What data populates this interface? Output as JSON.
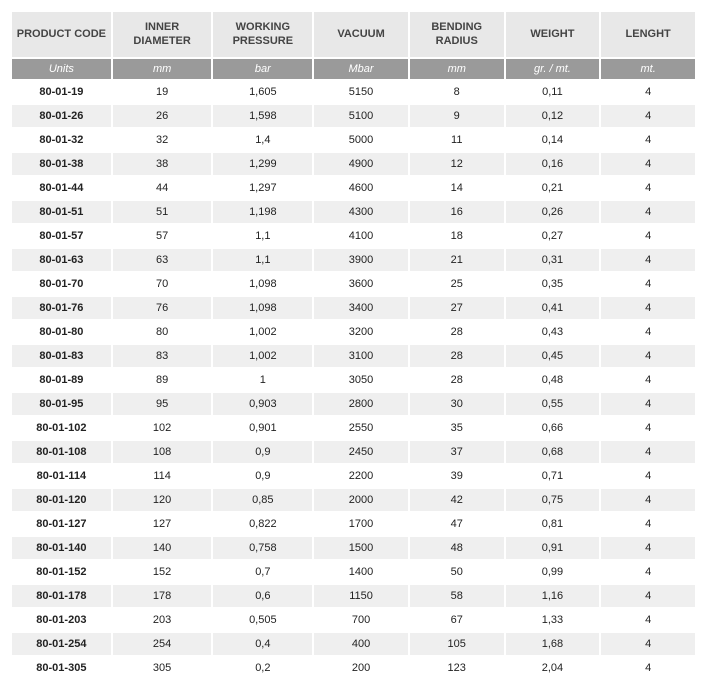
{
  "table": {
    "type": "table",
    "columns": [
      {
        "header": "PRODUCT CODE",
        "unit": "Units",
        "width": 100
      },
      {
        "header": "INNER DIAMETER",
        "unit": "mm",
        "width": 100
      },
      {
        "header": "WORKING PRESSURE",
        "unit": "bar",
        "width": 100
      },
      {
        "header": "VACUUM",
        "unit": "Mbar",
        "width": 95
      },
      {
        "header": "BENDING RADIUS",
        "unit": "mm",
        "width": 95
      },
      {
        "header": "WEIGHT",
        "unit": "gr. / mt.",
        "width": 95
      },
      {
        "header": "LENGHT",
        "unit": "mt.",
        "width": 95
      }
    ],
    "rows": [
      [
        "80-01-19",
        "19",
        "1,605",
        "5150",
        "8",
        "0,11",
        "4"
      ],
      [
        "80-01-26",
        "26",
        "1,598",
        "5100",
        "9",
        "0,12",
        "4"
      ],
      [
        "80-01-32",
        "32",
        "1,4",
        "5000",
        "11",
        "0,14",
        "4"
      ],
      [
        "80-01-38",
        "38",
        "1,299",
        "4900",
        "12",
        "0,16",
        "4"
      ],
      [
        "80-01-44",
        "44",
        "1,297",
        "4600",
        "14",
        "0,21",
        "4"
      ],
      [
        "80-01-51",
        "51",
        "1,198",
        "4300",
        "16",
        "0,26",
        "4"
      ],
      [
        "80-01-57",
        "57",
        "1,1",
        "4100",
        "18",
        "0,27",
        "4"
      ],
      [
        "80-01-63",
        "63",
        "1,1",
        "3900",
        "21",
        "0,31",
        "4"
      ],
      [
        "80-01-70",
        "70",
        "1,098",
        "3600",
        "25",
        "0,35",
        "4"
      ],
      [
        "80-01-76",
        "76",
        "1,098",
        "3400",
        "27",
        "0,41",
        "4"
      ],
      [
        "80-01-80",
        "80",
        "1,002",
        "3200",
        "28",
        "0,43",
        "4"
      ],
      [
        "80-01-83",
        "83",
        "1,002",
        "3100",
        "28",
        "0,45",
        "4"
      ],
      [
        "80-01-89",
        "89",
        "1",
        "3050",
        "28",
        "0,48",
        "4"
      ],
      [
        "80-01-95",
        "95",
        "0,903",
        "2800",
        "30",
        "0,55",
        "4"
      ],
      [
        "80-01-102",
        "102",
        "0,901",
        "2550",
        "35",
        "0,66",
        "4"
      ],
      [
        "80-01-108",
        "108",
        "0,9",
        "2450",
        "37",
        "0,68",
        "4"
      ],
      [
        "80-01-114",
        "114",
        "0,9",
        "2200",
        "39",
        "0,71",
        "4"
      ],
      [
        "80-01-120",
        "120",
        "0,85",
        "2000",
        "42",
        "0,75",
        "4"
      ],
      [
        "80-01-127",
        "127",
        "0,822",
        "1700",
        "47",
        "0,81",
        "4"
      ],
      [
        "80-01-140",
        "140",
        "0,758",
        "1500",
        "48",
        "0,91",
        "4"
      ],
      [
        "80-01-152",
        "152",
        "0,7",
        "1400",
        "50",
        "0,99",
        "4"
      ],
      [
        "80-01-178",
        "178",
        "0,6",
        "1150",
        "58",
        "1,16",
        "4"
      ],
      [
        "80-01-203",
        "203",
        "0,505",
        "700",
        "67",
        "1,33",
        "4"
      ],
      [
        "80-01-254",
        "254",
        "0,4",
        "400",
        "105",
        "1,68",
        "4"
      ],
      [
        "80-01-305",
        "305",
        "0,2",
        "200",
        "123",
        "2,04",
        "4"
      ]
    ],
    "styling": {
      "header_bg": "#e8e8e8",
      "header_color": "#444444",
      "units_bg": "#9a9a9a",
      "units_color": "#ffffff",
      "row_odd_bg": "#ffffff",
      "row_even_bg": "#efefef",
      "border_color": "#ffffff",
      "font_family": "Arial",
      "header_fontsize": 11,
      "cell_fontsize": 11
    }
  }
}
